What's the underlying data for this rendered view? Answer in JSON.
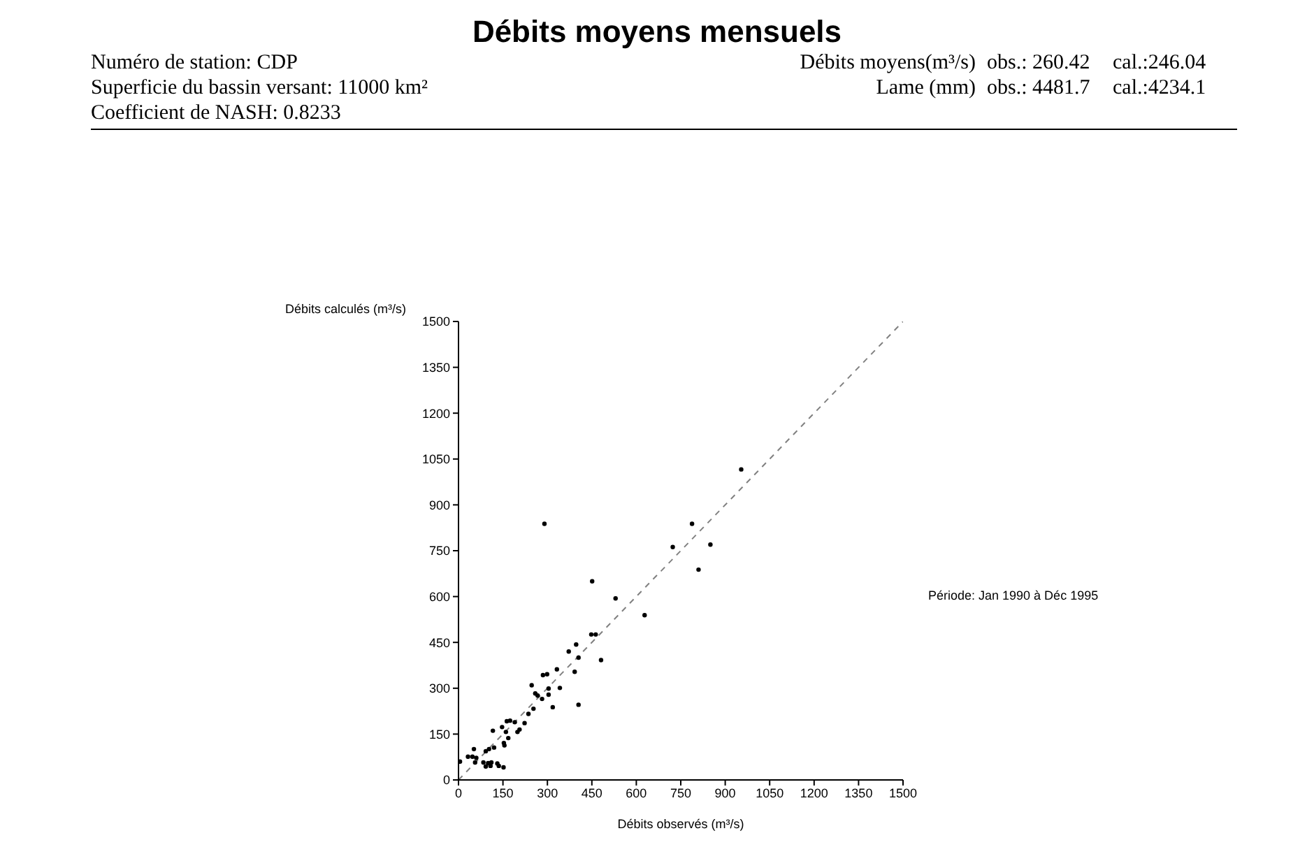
{
  "chart_data": {
    "type": "scatter",
    "title": "Débits moyens mensuels",
    "xlabel": "Débits observés (m³/s)",
    "ylabel": "Débits calculés (m³/s)",
    "annotations": [
      "Numéro de station: CDP",
      "Superficie du bassin versant: 11000 km²",
      "Coefficient de NASH: 0.8233",
      "Débits moyens(m³/s)",
      "obs.: 260.42",
      "cal.:246.04",
      "Lame (mm)",
      "obs.: 4481.7",
      "cal.:4234.1",
      "Période: Jan 1990 à Déc 1995"
    ],
    "xlim": [
      0,
      1500
    ],
    "ylim": [
      0,
      1500
    ],
    "xticks": [
      0,
      150,
      300,
      450,
      600,
      750,
      900,
      1050,
      1200,
      1350,
      1500
    ],
    "yticks": [
      0,
      150,
      300,
      450,
      600,
      750,
      900,
      1050,
      1200,
      1350,
      1500
    ],
    "marker": "circle",
    "series": [
      {
        "color": "#000000",
        "x": [
          954,
          290,
          788,
          723,
          850,
          810,
          451,
          530,
          628,
          448,
          463,
          481,
          397,
          372,
          405,
          392,
          332,
          342,
          285,
          299,
          247,
          259,
          267,
          282,
          304,
          304,
          318,
          405,
          253,
          236,
          223,
          199,
          206,
          163,
          174,
          190,
          147,
          160,
          168,
          153,
          155,
          116,
          120,
          103,
          92,
          52,
          32,
          47,
          60,
          56,
          5,
          84,
          100,
          111,
          92,
          108,
          131,
          136,
          152
        ],
        "values": [
          1016,
          838,
          838,
          762,
          770,
          688,
          650,
          594,
          539,
          476,
          476,
          392,
          443,
          420,
          400,
          354,
          362,
          301,
          343,
          346,
          310,
          283,
          276,
          265,
          299,
          279,
          238,
          246,
          233,
          216,
          186,
          157,
          165,
          192,
          194,
          189,
          173,
          157,
          137,
          121,
          113,
          161,
          106,
          101,
          94,
          101,
          76,
          76,
          72,
          57,
          60,
          57,
          55,
          57,
          44,
          46,
          54,
          46,
          41
        ]
      },
      {
        "type": "line",
        "color": "#808080",
        "line_style": "dashed",
        "marker": "none",
        "x": [
          0,
          1500
        ],
        "values": [
          0,
          1500
        ]
      }
    ]
  }
}
